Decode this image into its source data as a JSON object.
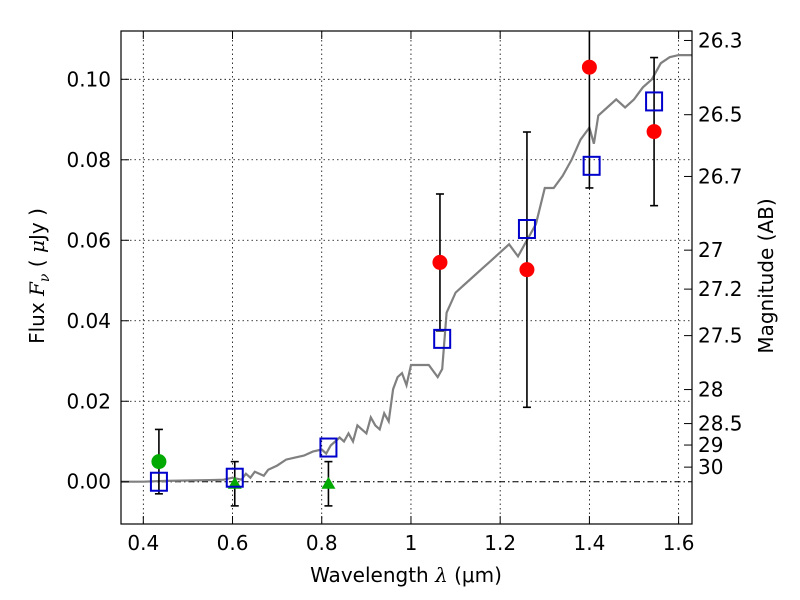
{
  "chart_data": {
    "type": "scatter",
    "xlabel": {
      "text": "Wavelength  ",
      "symbol": "λ",
      "unit": " (μm)"
    },
    "ylabel": {
      "text": "Flux  ",
      "symbol": "F",
      "subscript": "ν",
      "unit_open": "  ( ",
      "unit_mu": "μ",
      "unit_rest": "Jy )"
    },
    "ylabel_right": "Magnitude (AB)",
    "xlim": [
      0.35,
      1.63
    ],
    "ylim": [
      -0.0105,
      0.112
    ],
    "grid": true,
    "x_ticks": [
      0.4,
      0.6,
      0.8,
      1.0,
      1.2,
      1.4,
      1.6
    ],
    "x_tick_labels": [
      "0.4",
      "0.6",
      "0.8",
      "1",
      "1.2",
      "1.4",
      "1.6"
    ],
    "y_ticks": [
      0.0,
      0.02,
      0.04,
      0.06,
      0.08,
      0.1
    ],
    "y_tick_labels": [
      "0.00",
      "0.02",
      "0.04",
      "0.06",
      "0.08",
      "0.10"
    ],
    "mag_ticks": [
      26.3,
      26.5,
      26.7,
      27,
      27.2,
      27.5,
      28,
      28.5,
      29,
      30
    ],
    "mag_tick_labels": [
      "26.3",
      "26.5",
      "26.7",
      "27",
      "27.2",
      "27.5",
      "28",
      "28.5",
      "29",
      "30"
    ],
    "series": [
      {
        "marker": "line",
        "color": "#808080",
        "points": [
          [
            0.35,
            0.0
          ],
          [
            0.4,
            0.0
          ],
          [
            0.45,
            0.0002
          ],
          [
            0.5,
            0.0003
          ],
          [
            0.55,
            0.0004
          ],
          [
            0.58,
            0.0005
          ],
          [
            0.6,
            0.001
          ],
          [
            0.62,
            0.0005
          ],
          [
            0.63,
            0.002
          ],
          [
            0.64,
            0.001
          ],
          [
            0.65,
            0.0025
          ],
          [
            0.66,
            0.002
          ],
          [
            0.67,
            0.0015
          ],
          [
            0.68,
            0.003
          ],
          [
            0.7,
            0.004
          ],
          [
            0.72,
            0.0055
          ],
          [
            0.74,
            0.006
          ],
          [
            0.76,
            0.0065
          ],
          [
            0.78,
            0.0075
          ],
          [
            0.8,
            0.008
          ],
          [
            0.81,
            0.007
          ],
          [
            0.82,
            0.009
          ],
          [
            0.84,
            0.011
          ],
          [
            0.85,
            0.01
          ],
          [
            0.86,
            0.012
          ],
          [
            0.87,
            0.01
          ],
          [
            0.88,
            0.014
          ],
          [
            0.89,
            0.013
          ],
          [
            0.9,
            0.012
          ],
          [
            0.91,
            0.016
          ],
          [
            0.92,
            0.014
          ],
          [
            0.93,
            0.013
          ],
          [
            0.94,
            0.017
          ],
          [
            0.95,
            0.015
          ],
          [
            0.96,
            0.023
          ],
          [
            0.97,
            0.026
          ],
          [
            0.98,
            0.027
          ],
          [
            0.99,
            0.024
          ],
          [
            1.0,
            0.029
          ],
          [
            1.02,
            0.029
          ],
          [
            1.04,
            0.029
          ],
          [
            1.06,
            0.026
          ],
          [
            1.07,
            0.028
          ],
          [
            1.08,
            0.042
          ],
          [
            1.1,
            0.047
          ],
          [
            1.12,
            0.049
          ],
          [
            1.14,
            0.051
          ],
          [
            1.16,
            0.053
          ],
          [
            1.18,
            0.055
          ],
          [
            1.2,
            0.057
          ],
          [
            1.22,
            0.059
          ],
          [
            1.24,
            0.056
          ],
          [
            1.26,
            0.06
          ],
          [
            1.28,
            0.064
          ],
          [
            1.3,
            0.073
          ],
          [
            1.32,
            0.073
          ],
          [
            1.34,
            0.076
          ],
          [
            1.36,
            0.08
          ],
          [
            1.38,
            0.085
          ],
          [
            1.4,
            0.088
          ],
          [
            1.41,
            0.084
          ],
          [
            1.42,
            0.091
          ],
          [
            1.44,
            0.093
          ],
          [
            1.46,
            0.095
          ],
          [
            1.48,
            0.093
          ],
          [
            1.5,
            0.095
          ],
          [
            1.52,
            0.098
          ],
          [
            1.54,
            0.1
          ],
          [
            1.56,
            0.104
          ],
          [
            1.58,
            0.1055
          ],
          [
            1.6,
            0.106
          ],
          [
            1.63,
            0.106
          ]
        ]
      },
      {
        "marker": "circle",
        "color": "#ff0000",
        "points": [
          {
            "x": 1.065,
            "y": 0.0545,
            "err": 0.017
          },
          {
            "x": 1.26,
            "y": 0.0527,
            "err": 0.0342
          },
          {
            "x": 1.4,
            "y": 0.103,
            "err": 0.03
          },
          {
            "x": 1.545,
            "y": 0.087,
            "err": 0.0184
          }
        ]
      },
      {
        "marker": "circle",
        "color": "#00aa00",
        "points": [
          {
            "x": 0.435,
            "y": 0.005,
            "err": 0.008
          }
        ]
      },
      {
        "marker": "triangle",
        "color": "#00aa00",
        "points": [
          {
            "x": 0.605,
            "y": -0.0005,
            "err": 0.0055
          },
          {
            "x": 0.815,
            "y": -0.0005,
            "err": 0.0055
          }
        ]
      },
      {
        "marker": "square",
        "color": "#0000cc",
        "points": [
          {
            "x": 0.435,
            "y": 0.0
          },
          {
            "x": 0.605,
            "y": 0.001
          },
          {
            "x": 0.815,
            "y": 0.0085
          },
          {
            "x": 1.07,
            "y": 0.0355
          },
          {
            "x": 1.26,
            "y": 0.0628
          },
          {
            "x": 1.405,
            "y": 0.0785
          },
          {
            "x": 1.545,
            "y": 0.0945
          }
        ]
      }
    ],
    "zero_line": 0.0
  }
}
